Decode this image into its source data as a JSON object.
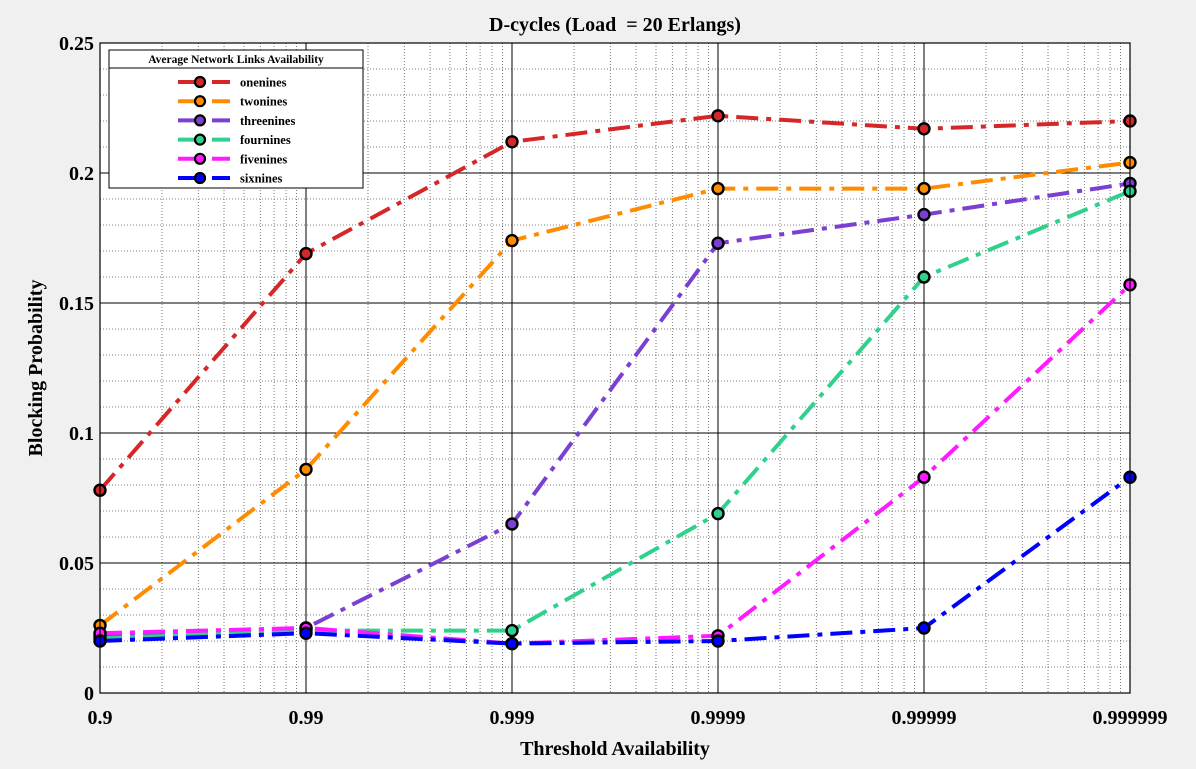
{
  "chart_data": {
    "type": "line",
    "title": "D-cycles (Load  = 20 Erlangs)",
    "xlabel": "Threshold Availability",
    "ylabel": "Blocking Probability",
    "x_scale": "log10(1/(1-x))",
    "x": [
      "0.9",
      "0.99",
      "0.999",
      "0.9999",
      "0.99999",
      "0.999999"
    ],
    "xticks": [
      "0.9",
      "0.99",
      "0.999",
      "0.9999",
      "0.99999",
      "0.999999"
    ],
    "ylim": [
      0,
      0.25
    ],
    "yticks": [
      "0",
      "0.05",
      "0.1",
      "0.15",
      "0.2",
      "0.25"
    ],
    "grid": true,
    "legend": {
      "title": "Average Network Links Availability",
      "position": "top-left"
    },
    "series": [
      {
        "name": "onenines",
        "color": "#d62728",
        "values": [
          0.078,
          0.169,
          0.212,
          0.222,
          0.217,
          0.22
        ]
      },
      {
        "name": "twonines",
        "color": "#ff8c00",
        "values": [
          0.026,
          0.086,
          0.174,
          0.194,
          0.194,
          0.204
        ]
      },
      {
        "name": "threenines",
        "color": "#7b3fd1",
        "values": [
          0.022,
          0.025,
          0.065,
          0.173,
          0.184,
          0.196
        ]
      },
      {
        "name": "fournines",
        "color": "#2fd18c",
        "values": [
          0.021,
          0.024,
          0.024,
          0.069,
          0.16,
          0.193
        ]
      },
      {
        "name": "fivenines",
        "color": "#ff1aff",
        "values": [
          0.023,
          0.025,
          0.019,
          0.022,
          0.083,
          0.157
        ]
      },
      {
        "name": "sixnines",
        "color": "#0000ff",
        "values": [
          0.02,
          0.023,
          0.019,
          0.02,
          0.025,
          0.083
        ]
      }
    ]
  }
}
